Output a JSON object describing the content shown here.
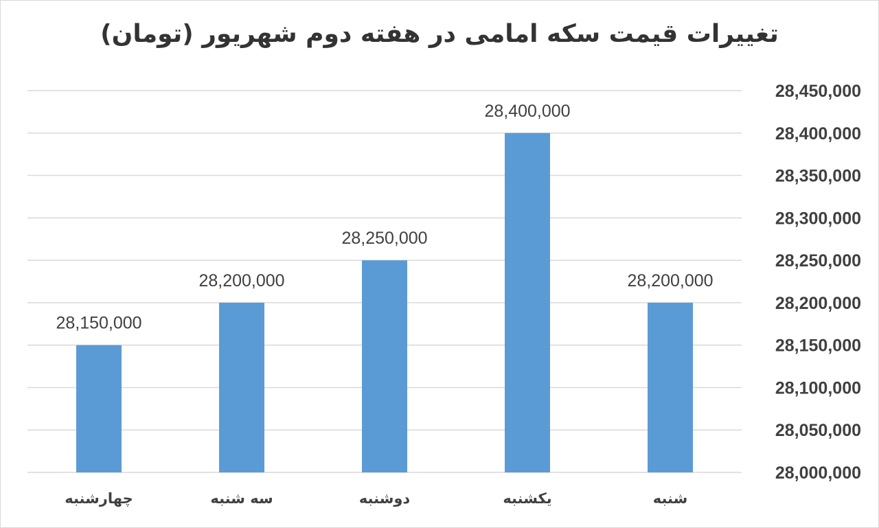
{
  "chart_data": {
    "type": "bar",
    "title": "تغییرات قیمت سکه امامی در هفته دوم شهریور (تومان)",
    "xlabel": "",
    "ylabel": "",
    "categories": [
      "شنبه",
      "یکشنبه",
      "دوشنبه",
      "سه شنبه",
      "چهارشنبه"
    ],
    "values": [
      28200000,
      28400000,
      28250000,
      28200000,
      28150000
    ],
    "data_labels": [
      "28,200,000",
      "28,400,000",
      "28,250,000",
      "28,200,000",
      "28,150,000"
    ],
    "ylim": [
      28000000,
      28450000
    ],
    "yticks": [
      28000000,
      28050000,
      28100000,
      28150000,
      28200000,
      28250000,
      28300000,
      28350000,
      28400000,
      28450000
    ],
    "ytick_labels": [
      "28,000,000",
      "28,050,000",
      "28,100,000",
      "28,150,000",
      "28,200,000",
      "28,250,000",
      "28,300,000",
      "28,350,000",
      "28,400,000",
      "28,450,000"
    ],
    "grid": true,
    "legend": "none",
    "category_order": "right-to-left",
    "y_axis_side": "right",
    "bar_color": "#5b9bd5",
    "gridline_color": "#d9d9d9"
  }
}
